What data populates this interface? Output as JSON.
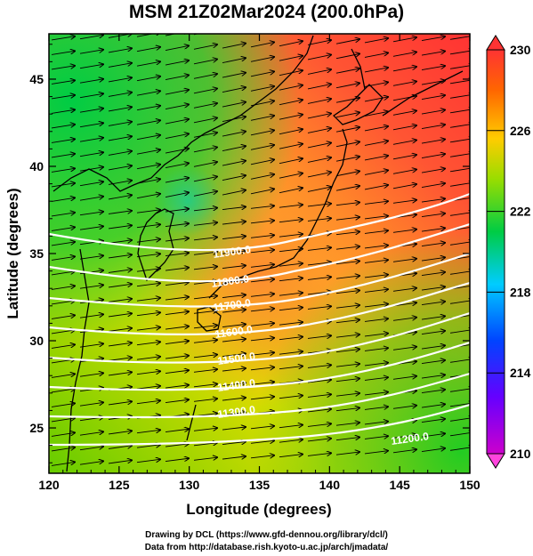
{
  "title": "MSM 21Z02Mar2024 (200.0hPa)",
  "x_axis": {
    "label": "Longitude (degrees)",
    "range": [
      120,
      150
    ],
    "ticks": [
      "120",
      "125",
      "130",
      "135",
      "140",
      "145",
      "150"
    ]
  },
  "y_axis": {
    "label": "Latitude  (degrees)",
    "range": [
      22.4,
      47.6
    ],
    "ticks": [
      "25",
      "30",
      "35",
      "40",
      "45"
    ]
  },
  "colorbar": {
    "range": [
      210,
      230
    ],
    "ticks": [
      "210",
      "214",
      "218",
      "222",
      "226",
      "230"
    ],
    "colors": [
      "#cc00cc",
      "#0000ff",
      "#00ccff",
      "#00cc44",
      "#99cc00",
      "#ffcc00",
      "#ff6600",
      "#ff2222"
    ]
  },
  "contour_labels": [
    "11900.0",
    "11800.0",
    "11700.0",
    "11600.0",
    "11500.0",
    "11400.0",
    "11300.0",
    "11200.0"
  ],
  "credits": {
    "line1": "Drawing by DCL (https://www.gfd-dennou.org/library/dcl/)",
    "line2": "Data from http://database.rish.kyoto-u.ac.jp/arch/jmadata/"
  },
  "wind_direction": "westerly"
}
